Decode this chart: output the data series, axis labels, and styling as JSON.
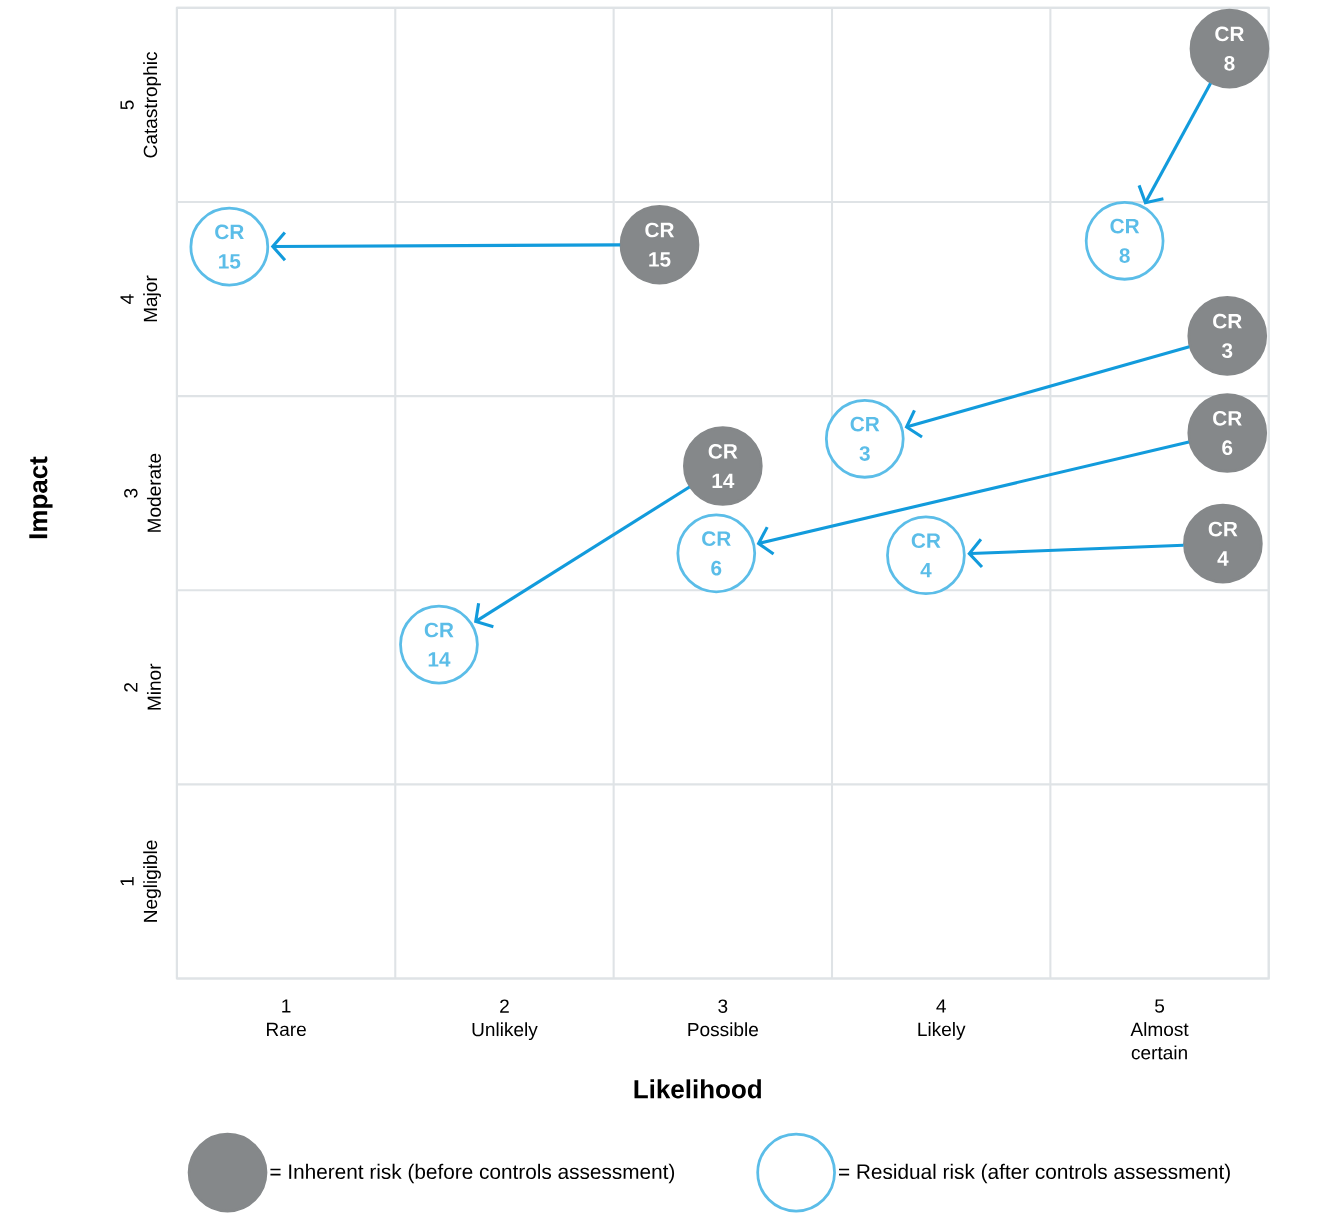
{
  "chart_data": {
    "type": "scatter",
    "xlabel": "Likelihood",
    "ylabel": "Impact",
    "xlim": [
      0.5,
      5.5
    ],
    "ylim": [
      0.5,
      5.5
    ],
    "xticks": [
      {
        "value": 0.5,
        "label": null
      },
      {
        "value": 1,
        "label": "1 Rare"
      },
      {
        "value": 1.5,
        "label": null
      },
      {
        "value": 2,
        "label": "2 Unlikely"
      },
      {
        "value": 2.5,
        "label": null
      },
      {
        "value": 3,
        "label": "3 Possible"
      },
      {
        "value": 3.5,
        "label": null
      },
      {
        "value": 4,
        "label": "4 Likely"
      },
      {
        "value": 4.5,
        "label": null
      },
      {
        "value": 5,
        "label": "5 Almost certain"
      },
      {
        "value": 5.5,
        "label": null
      }
    ],
    "yticks": [
      {
        "value": 0.5,
        "label": null
      },
      {
        "value": 1,
        "label": "1 Negligible"
      },
      {
        "value": 1.5,
        "label": null
      },
      {
        "value": 2,
        "label": "2 Minor"
      },
      {
        "value": 2.5,
        "label": null
      },
      {
        "value": 3,
        "label": "3 Moderate"
      },
      {
        "value": 3.5,
        "label": null
      },
      {
        "value": 4,
        "label": "4 Major"
      },
      {
        "value": 4.5,
        "label": null
      },
      {
        "value": 5,
        "label": "5 Catastrophic"
      },
      {
        "value": 5.5,
        "label": null
      }
    ],
    "grid": true,
    "legend": "bottom",
    "series": [
      {
        "name": "= Inherent risk (before controls assessment)",
        "color": "#85888a",
        "x": [
          5.32,
          2.71,
          5.31,
          5.31,
          3.0,
          5.29
        ],
        "values": [
          5.29,
          4.28,
          3.81,
          3.31,
          3.14,
          2.74
        ],
        "value_labels": [
          "CR 8",
          "CR 15",
          "CR 3",
          "CR 6",
          "CR 14",
          "CR 4"
        ]
      },
      {
        "name": "= Residual risk (after controls assessment)",
        "color": "#5bbde8",
        "x": [
          4.84,
          0.74,
          3.65,
          2.97,
          1.7,
          3.93
        ],
        "values": [
          4.3,
          4.27,
          3.28,
          2.69,
          2.22,
          2.68
        ],
        "value_labels": [
          "CR 8",
          "CR 15",
          "CR 3",
          "CR 6",
          "CR 14",
          "CR 4"
        ]
      }
    ]
  }
}
